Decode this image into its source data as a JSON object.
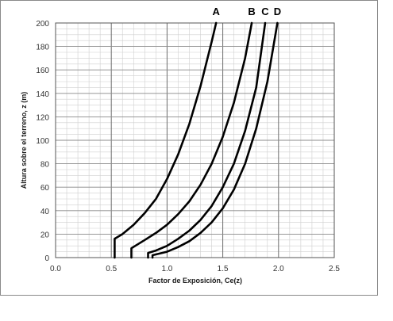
{
  "chart_data": {
    "type": "line",
    "title": "",
    "xlabel": "Factor de Exposición, Ce(z)",
    "ylabel": "Altura sobre el terreno, z (m)",
    "xlim": [
      0.0,
      2.5
    ],
    "ylim": [
      0,
      200
    ],
    "x_ticks": [
      "0.0",
      "0.5",
      "1.0",
      "1.5",
      "2.0",
      "2.5"
    ],
    "y_ticks": [
      "0",
      "20",
      "40",
      "60",
      "80",
      "100",
      "120",
      "140",
      "160",
      "180",
      "200"
    ],
    "grid": true,
    "series": [
      {
        "name": "A",
        "points": [
          [
            0.53,
            0
          ],
          [
            0.53,
            16
          ],
          [
            0.6,
            20
          ],
          [
            0.7,
            28
          ],
          [
            0.8,
            38
          ],
          [
            0.9,
            50
          ],
          [
            1.0,
            67
          ],
          [
            1.1,
            88
          ],
          [
            1.2,
            114
          ],
          [
            1.3,
            146
          ],
          [
            1.4,
            184
          ],
          [
            1.44,
            200
          ]
        ]
      },
      {
        "name": "B",
        "points": [
          [
            0.68,
            0
          ],
          [
            0.68,
            8
          ],
          [
            0.8,
            15
          ],
          [
            0.9,
            21
          ],
          [
            1.0,
            28
          ],
          [
            1.1,
            37
          ],
          [
            1.2,
            48
          ],
          [
            1.3,
            62
          ],
          [
            1.4,
            80
          ],
          [
            1.5,
            103
          ],
          [
            1.6,
            132
          ],
          [
            1.7,
            170
          ],
          [
            1.76,
            200
          ]
        ]
      },
      {
        "name": "C",
        "points": [
          [
            0.83,
            0
          ],
          [
            0.83,
            4
          ],
          [
            0.9,
            6
          ],
          [
            1.0,
            10
          ],
          [
            1.1,
            16
          ],
          [
            1.2,
            23
          ],
          [
            1.3,
            32
          ],
          [
            1.4,
            44
          ],
          [
            1.5,
            60
          ],
          [
            1.6,
            80
          ],
          [
            1.7,
            108
          ],
          [
            1.8,
            145
          ],
          [
            1.88,
            200
          ]
        ]
      },
      {
        "name": "D",
        "points": [
          [
            0.87,
            0
          ],
          [
            0.87,
            2
          ],
          [
            1.0,
            5
          ],
          [
            1.1,
            9
          ],
          [
            1.2,
            14
          ],
          [
            1.3,
            21
          ],
          [
            1.4,
            30
          ],
          [
            1.5,
            42
          ],
          [
            1.6,
            58
          ],
          [
            1.7,
            80
          ],
          [
            1.8,
            110
          ],
          [
            1.9,
            150
          ],
          [
            1.99,
            200
          ]
        ]
      }
    ]
  }
}
